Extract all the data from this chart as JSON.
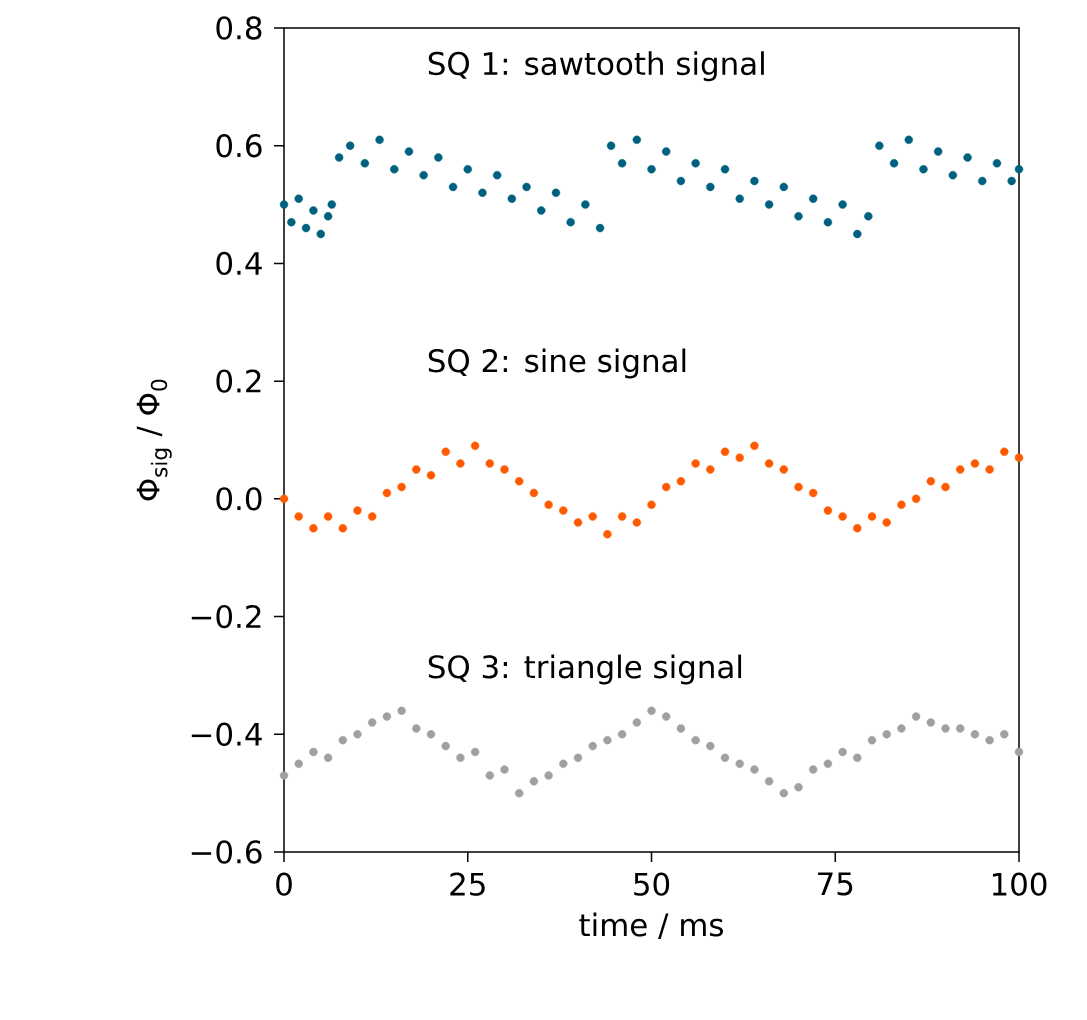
{
  "chart_data": {
    "type": "scatter",
    "xlabel": "time / ms",
    "ylabel": "Φ$_{sig}$ / Φ$_{0}$",
    "marker": "circle",
    "xlim": [
      0,
      100
    ],
    "ylim": [
      -0.6,
      0.8
    ],
    "xticks": [
      0,
      25,
      50,
      75,
      100
    ],
    "yticks": [
      {
        "value": -0.6,
        "label": "−0.6"
      },
      {
        "value": -0.4,
        "label": "−0.4"
      },
      {
        "value": -0.2,
        "label": "−0.2"
      },
      {
        "value": 0,
        "label": "0.0"
      },
      {
        "value": 0.2,
        "label": "0.2"
      },
      {
        "value": 0.4,
        "label": "0.4"
      },
      {
        "value": 0.6,
        "label": "0.6"
      },
      {
        "value": 0.8,
        "label": "0.8"
      }
    ],
    "series": [
      {
        "name": "SQ 1: sawtooth signal",
        "color": "#00617f",
        "x": [
          0,
          1,
          2,
          3,
          4,
          5,
          6,
          6.5,
          7.5,
          9,
          11,
          13,
          15,
          17,
          19,
          21,
          23,
          25,
          27,
          29,
          31,
          33,
          35,
          37,
          39,
          41,
          43,
          44.5,
          46,
          48,
          50,
          52,
          54,
          56,
          58,
          60,
          62,
          64,
          66,
          68,
          70,
          72,
          74,
          76,
          78,
          79.5,
          81,
          83,
          85,
          87,
          89,
          91,
          93,
          95,
          97,
          99,
          100
        ],
        "values": [
          0.5,
          0.47,
          0.51,
          0.46,
          0.49,
          0.45,
          0.48,
          0.5,
          0.58,
          0.6,
          0.57,
          0.61,
          0.56,
          0.59,
          0.55,
          0.58,
          0.53,
          0.56,
          0.52,
          0.55,
          0.51,
          0.53,
          0.49,
          0.52,
          0.47,
          0.5,
          0.46,
          0.6,
          0.57,
          0.61,
          0.56,
          0.59,
          0.54,
          0.57,
          0.53,
          0.56,
          0.51,
          0.54,
          0.5,
          0.53,
          0.48,
          0.51,
          0.47,
          0.5,
          0.45,
          0.48,
          0.6,
          0.57,
          0.61,
          0.56,
          0.59,
          0.55,
          0.58,
          0.54,
          0.57,
          0.54,
          0.56
        ]
      },
      {
        "name": "SQ 2: sine signal",
        "color": "#ff5a00",
        "x": [
          0,
          2,
          4,
          6,
          8,
          10,
          12,
          14,
          16,
          18,
          20,
          22,
          24,
          26,
          28,
          30,
          32,
          34,
          36,
          38,
          40,
          42,
          44,
          46,
          48,
          50,
          52,
          54,
          56,
          58,
          60,
          62,
          64,
          66,
          68,
          70,
          72,
          74,
          76,
          78,
          80,
          82,
          84,
          86,
          88,
          90,
          92,
          94,
          96,
          98,
          100
        ],
        "values": [
          0.0,
          -0.03,
          -0.05,
          -0.03,
          -0.05,
          -0.02,
          -0.03,
          0.01,
          0.02,
          0.05,
          0.04,
          0.08,
          0.06,
          0.09,
          0.06,
          0.05,
          0.03,
          0.01,
          -0.01,
          -0.02,
          -0.04,
          -0.03,
          -0.06,
          -0.03,
          -0.04,
          -0.01,
          0.02,
          0.03,
          0.06,
          0.05,
          0.08,
          0.07,
          0.09,
          0.06,
          0.05,
          0.02,
          0.01,
          -0.02,
          -0.03,
          -0.05,
          -0.03,
          -0.04,
          -0.01,
          0.0,
          0.03,
          0.02,
          0.05,
          0.06,
          0.05,
          0.08,
          0.07
        ]
      },
      {
        "name": "SQ 3: triangle signal",
        "color": "#a0a0a0",
        "x": [
          0,
          2,
          4,
          6,
          8,
          10,
          12,
          14,
          16,
          18,
          20,
          22,
          24,
          26,
          28,
          30,
          32,
          34,
          36,
          38,
          40,
          42,
          44,
          46,
          48,
          50,
          52,
          54,
          56,
          58,
          60,
          62,
          64,
          66,
          68,
          70,
          72,
          74,
          76,
          78,
          80,
          82,
          84,
          86,
          88,
          90,
          92,
          94,
          96,
          98,
          100
        ],
        "values": [
          -0.47,
          -0.45,
          -0.43,
          -0.44,
          -0.41,
          -0.4,
          -0.38,
          -0.37,
          -0.36,
          -0.39,
          -0.4,
          -0.42,
          -0.44,
          -0.43,
          -0.47,
          -0.46,
          -0.5,
          -0.48,
          -0.47,
          -0.45,
          -0.44,
          -0.42,
          -0.41,
          -0.4,
          -0.38,
          -0.36,
          -0.37,
          -0.39,
          -0.41,
          -0.42,
          -0.44,
          -0.45,
          -0.46,
          -0.48,
          -0.5,
          -0.49,
          -0.46,
          -0.45,
          -0.43,
          -0.44,
          -0.41,
          -0.4,
          -0.39,
          -0.37,
          -0.38,
          -0.39,
          -0.39,
          -0.4,
          -0.41,
          -0.4,
          -0.43
        ]
      }
    ]
  }
}
